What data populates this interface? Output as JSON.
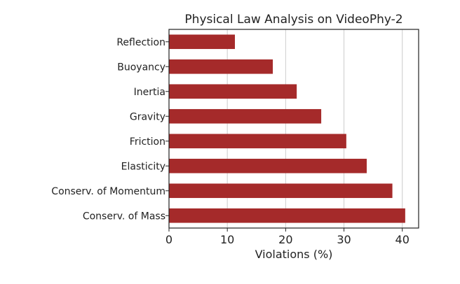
{
  "chart_data": {
    "type": "bar",
    "orientation": "horizontal",
    "title": "Physical Law Analysis on VideoPhy-2",
    "xlabel": "Violations (%)",
    "ylabel": "",
    "categories": [
      "Reflection",
      "Buoyancy",
      "Inertia",
      "Gravity",
      "Friction",
      "Elasticity",
      "Conserv. of Momentum",
      "Conserv. of Mass"
    ],
    "values": [
      11.3,
      17.8,
      21.9,
      26.1,
      30.4,
      33.9,
      38.3,
      40.5
    ],
    "xlim": [
      0,
      42.8
    ],
    "xticks": [
      0,
      10,
      20,
      30,
      40
    ],
    "grid": "vertical",
    "bar_color": "#a52a2a"
  }
}
